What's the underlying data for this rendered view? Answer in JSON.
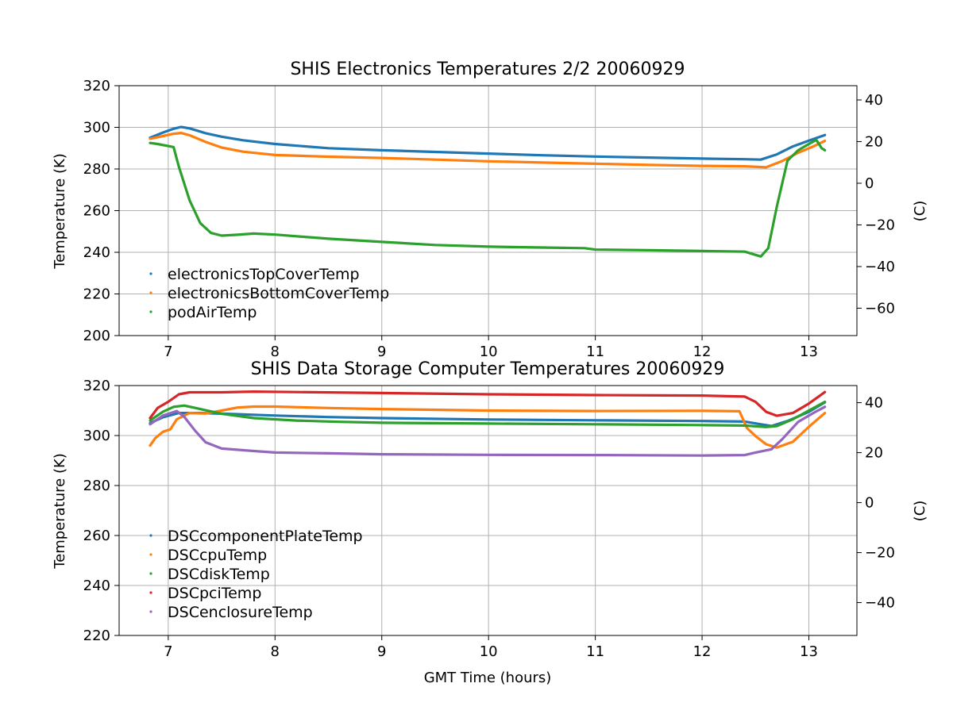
{
  "chart_data": [
    {
      "type": "line",
      "title": "SHIS Electronics Temperatures 2/2 20060929",
      "xlabel": "",
      "ylabel": "Temperature (K)",
      "ylabel_right": "(C)",
      "xlim": [
        6.54,
        13.45
      ],
      "ylim": [
        200,
        320
      ],
      "xticks": [
        "7",
        "8",
        "9",
        "10",
        "11",
        "12",
        "13"
      ],
      "yticks": [
        "200",
        "220",
        "240",
        "260",
        "280",
        "300",
        "320"
      ],
      "yticks_right": [
        "−60",
        "−40",
        "−20",
        "0",
        "20",
        "40"
      ],
      "grid": true,
      "legend_position": "lower-left",
      "series": [
        {
          "name": "electronicsTopCoverTemp",
          "color": "#1f77b4",
          "x": [
            6.83,
            6.95,
            7.05,
            7.12,
            7.2,
            7.35,
            7.5,
            7.7,
            8.0,
            8.5,
            9.0,
            9.5,
            10.0,
            10.5,
            11.0,
            11.5,
            12.0,
            12.4,
            12.55,
            12.7,
            12.85,
            13.0,
            13.15
          ],
          "y": [
            295,
            297.5,
            299.3,
            300.2,
            299.5,
            297.2,
            295.5,
            293.8,
            292,
            290,
            289,
            288.2,
            287.4,
            286.6,
            286,
            285.5,
            285,
            284.7,
            284.5,
            287,
            290.8,
            293.6,
            296.3
          ]
        },
        {
          "name": "electronicsBottomCoverTemp",
          "color": "#ff7f0e",
          "x": [
            6.83,
            6.95,
            7.05,
            7.12,
            7.2,
            7.35,
            7.5,
            7.7,
            8.0,
            8.5,
            9.0,
            9.5,
            10.0,
            10.5,
            11.0,
            11.5,
            12.0,
            12.4,
            12.6,
            12.75,
            12.9,
            13.05,
            13.15
          ],
          "y": [
            294.5,
            295.8,
            296.9,
            297.3,
            296.2,
            293,
            290.3,
            288.3,
            286.7,
            285.9,
            285.3,
            284.5,
            283.7,
            283.1,
            282.5,
            282,
            281.5,
            281.3,
            280.8,
            283.8,
            287.8,
            291,
            293.5
          ]
        },
        {
          "name": "podAirTemp",
          "color": "#2ca02c",
          "x": [
            6.83,
            6.9,
            7.0,
            7.05,
            7.1,
            7.2,
            7.3,
            7.4,
            7.5,
            7.65,
            7.8,
            8.0,
            8.5,
            9.0,
            9.5,
            10.0,
            10.5,
            10.9,
            11.0,
            11.5,
            12.0,
            12.4,
            12.55,
            12.62,
            12.7,
            12.8,
            12.9,
            13.0,
            13.07,
            13.12,
            13.15
          ],
          "y": [
            292.5,
            292,
            291,
            290.5,
            281,
            265,
            254,
            249.3,
            248,
            248.4,
            249,
            248.5,
            246.5,
            245,
            243.5,
            242.7,
            242.3,
            242,
            241.3,
            241,
            240.6,
            240.3,
            238,
            242,
            262,
            284,
            289,
            292,
            294,
            290,
            289
          ]
        }
      ]
    },
    {
      "type": "line",
      "title": "SHIS Data Storage Computer Temperatures 20060929",
      "xlabel": "GMT Time (hours)",
      "ylabel": "Temperature (K)",
      "ylabel_right": "(C)",
      "xlim": [
        6.54,
        13.45
      ],
      "ylim": [
        220,
        320
      ],
      "xticks": [
        "7",
        "8",
        "9",
        "10",
        "11",
        "12",
        "13"
      ],
      "yticks": [
        "220",
        "240",
        "260",
        "280",
        "300",
        "320"
      ],
      "yticks_right": [
        "−40",
        "−20",
        "0",
        "20",
        "40"
      ],
      "grid": true,
      "legend_position": "lower-left",
      "series": [
        {
          "name": "DSCcomponentPlateTemp",
          "color": "#1f77b4",
          "x": [
            6.83,
            6.95,
            7.1,
            7.3,
            7.6,
            8.0,
            8.5,
            9.0,
            10.0,
            11.0,
            12.0,
            12.4,
            12.55,
            12.65,
            12.8,
            13.0,
            13.15
          ],
          "y": [
            305,
            307.3,
            309,
            309,
            308.6,
            308,
            307.4,
            307,
            306.4,
            306.1,
            305.8,
            305.6,
            304.5,
            303.8,
            305.8,
            309.5,
            313.3
          ]
        },
        {
          "name": "DSCcpuTemp",
          "color": "#ff7f0e",
          "x": [
            6.83,
            6.88,
            6.95,
            7.02,
            7.08,
            7.2,
            7.35,
            7.5,
            7.65,
            7.8,
            8.0,
            8.5,
            9.0,
            10.0,
            11.0,
            12.0,
            12.35,
            12.42,
            12.5,
            12.6,
            12.7,
            12.85,
            13.0,
            13.15
          ],
          "y": [
            296,
            299,
            301.5,
            302.5,
            306.5,
            309,
            308.8,
            310,
            311.2,
            311.6,
            311.6,
            311,
            310.6,
            310,
            309.8,
            309.9,
            309.7,
            303,
            299.8,
            296.5,
            295.2,
            297.5,
            303.5,
            309
          ]
        },
        {
          "name": "DSCdiskTemp",
          "color": "#2ca02c",
          "x": [
            6.83,
            6.95,
            7.05,
            7.15,
            7.3,
            7.5,
            7.8,
            8.2,
            8.6,
            9.0,
            10.0,
            11.0,
            12.0,
            12.4,
            12.6,
            12.7,
            12.85,
            13.0,
            13.15
          ],
          "y": [
            306,
            309.5,
            311.5,
            312,
            310.6,
            308.7,
            307,
            306,
            305.5,
            305.1,
            304.8,
            304.5,
            304.2,
            304,
            303.4,
            303.8,
            306.5,
            310,
            313.5
          ]
        },
        {
          "name": "DSCpciTemp",
          "color": "#d62728",
          "x": [
            6.83,
            6.9,
            7.0,
            7.1,
            7.2,
            7.5,
            7.8,
            8.2,
            9.0,
            10.0,
            11.0,
            12.0,
            12.4,
            12.5,
            12.6,
            12.7,
            12.85,
            13.0,
            13.15
          ],
          "y": [
            307,
            311,
            313.5,
            316.5,
            317.3,
            317.3,
            317.6,
            317.4,
            317,
            316.5,
            316.2,
            316,
            315.6,
            313.5,
            309.5,
            307.9,
            309,
            312.8,
            317.4
          ]
        },
        {
          "name": "DSCenclosureTemp",
          "color": "#9467bd",
          "x": [
            6.83,
            6.95,
            7.08,
            7.15,
            7.25,
            7.35,
            7.5,
            7.8,
            8.0,
            8.5,
            9.0,
            10.0,
            11.0,
            12.0,
            12.4,
            12.5,
            12.65,
            12.75,
            12.9,
            13.05,
            13.15
          ],
          "y": [
            304.5,
            308,
            309.8,
            307.5,
            302,
            297.3,
            294.8,
            293.8,
            293.2,
            292.9,
            292.5,
            292.3,
            292.2,
            292,
            292.2,
            293.2,
            294.5,
            298.5,
            305.5,
            309.2,
            311.5
          ]
        }
      ]
    }
  ]
}
